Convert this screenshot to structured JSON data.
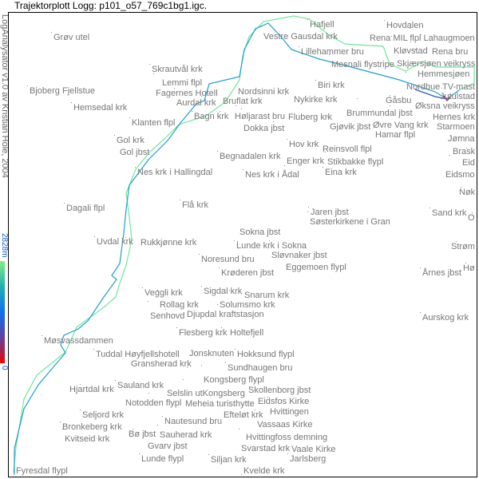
{
  "title": "Trajektorplott Logg:  p101_o57_769c1bg1.igc.",
  "credit": "LogAnalysator v1.0 av Kristian Hole, 2004",
  "colorbar": {
    "max_label": "2828m",
    "min_label": "0",
    "colors": [
      "#80f080",
      "#20b0b0",
      "#1070f0",
      "#6040a0",
      "#ff0000"
    ]
  },
  "track_colors": {
    "high": "#7ff08a",
    "mid": "#20b0c0",
    "low": "#1060e0",
    "lowest": "#c01030"
  },
  "places": [
    "Grøv utel",
    "Skrautvål krk",
    "Lemmi flpl",
    "Fagernes Hotell",
    "Bjoberg Fjellstue",
    "Aurdal krk",
    "Hemsedal krk",
    "Bruflat krk",
    "Bagn krk",
    "Høljarast bru",
    "Nordsinni krk",
    "Dokka jbst",
    "Klanten flpl",
    "Gol krk",
    "Gol jbst",
    "Begnadalen krk",
    "Nes krk i Hallingdal",
    "Nes krk i Ådal",
    "Enger krk",
    "Eina krk",
    "Flå krk",
    "Dagali flpl",
    "Uvdal krk",
    "Rukkjønne krk",
    "Noresund bru",
    "Krøderen jbst",
    "Lunde krk i Sokna",
    "Sokna jbst",
    "Sløvnaker jbst",
    "Eggemoen flypl",
    "Jaren jbst",
    "Søsterkirkene i Gran",
    "Sand krk",
    "Veggli krk",
    "Rollag krk",
    "Sigdal krk",
    "Snarum krk",
    "Senhovd",
    "Djupdal kraftstasjon",
    "Solumsmo krk",
    "Flesberg krk",
    "Holtefjell",
    "Møsvassdammen",
    "Tuddal Høyfjellshotell",
    "Gransherad krk",
    "Hokksund flypl",
    "Sundhaugen bru",
    "Kongsberg flypl",
    "Selslin utKongsberg",
    "Jonsknuten",
    "Sauland krk",
    "Meheia turisthytte",
    "Skollenborg jbst",
    "Hjartdal krk",
    "Eidsfos Kirke",
    "Notodden flypl",
    "Efteløt krk",
    "Hvittingen",
    "Seljord krk",
    "Vassaas Kirke",
    "Hvittingfoss demning",
    "Nautesund bru",
    "Bronkeberg krk",
    "Kvitseid krk",
    "Sauherad krk",
    "Bø jbst",
    "Gvarv jbst",
    "Svarstad krk",
    "Vaale Kirke",
    "Lunde flypl",
    "Siljan krk",
    "Jarlsberg",
    "Fyresdal flypl",
    "Kvelde krk",
    "Hafjell",
    "Vestre Gausdal krk",
    "Hovdalen",
    "Rena MIL flpl Lahaugmoen",
    "Kløvstad",
    "Skjærsjøen veikryss",
    "Rena bru",
    "Hemmesjøen",
    "Lillehammer bru",
    "Mesnali flystripe",
    "Nordbue TV-mast",
    "Jutulstad",
    "Øksna veikryss",
    "Hernes krk",
    "Starmoen",
    "Biri krk",
    "Nykirke krk",
    "Gåsbu",
    "Brummundal jbst",
    "Øvre Vang krk",
    "Hamar flpl",
    "Gjøvik jbst",
    "Fluberg krk",
    "Jømna",
    "Hov krk",
    "Reinsvoll flpl",
    "Stikbakke flypl",
    "Brask",
    "Eid",
    "Eidsmo",
    "Nøk",
    "Strøm",
    "Årnes jbst",
    "Hø",
    "O",
    "Aurskog krk"
  ]
}
